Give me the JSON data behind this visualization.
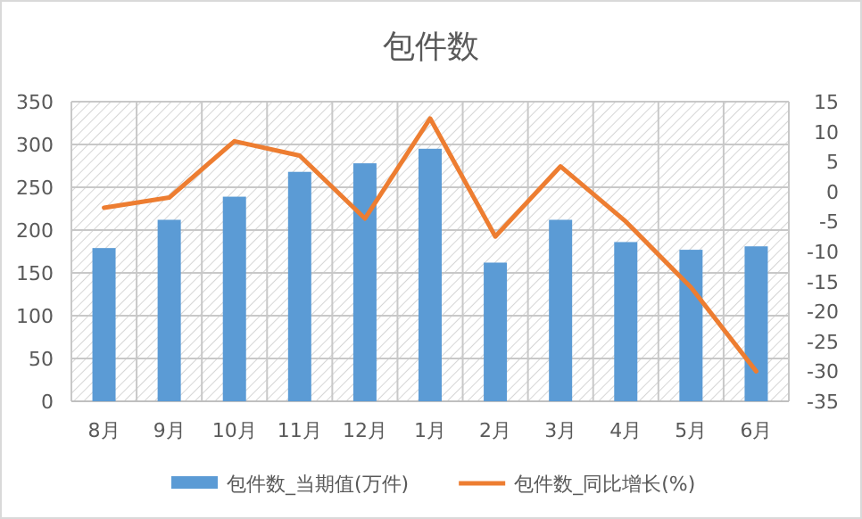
{
  "chart_data": {
    "type": "bar",
    "title": "包件数",
    "categories": [
      "8月",
      "9月",
      "10月",
      "11月",
      "12月",
      "1月",
      "2月",
      "3月",
      "4月",
      "5月",
      "6月"
    ],
    "series": [
      {
        "name": "包件数_当期值(万件)",
        "color": "#5b9bd5",
        "values": [
          179,
          212,
          239,
          268,
          278,
          295,
          162,
          212,
          186,
          177,
          181
        ]
      },
      {
        "name": "包件数_同比增长(%)",
        "type": "line",
        "axis": "y2",
        "color": "#ed7d31",
        "values": [
          -2.7,
          -1,
          8.4,
          6,
          -4.5,
          12.2,
          -7.5,
          4.2,
          -5,
          -16,
          -30
        ]
      }
    ],
    "ylim": [
      0,
      350
    ],
    "yticks": [
      0,
      50,
      100,
      150,
      200,
      250,
      300,
      350
    ],
    "y2lim": [
      -35,
      15
    ],
    "y2ticks": [
      -35,
      -30,
      -25,
      -20,
      -15,
      -10,
      -5,
      0,
      5,
      10,
      15
    ],
    "grid": true,
    "legend": "bottom",
    "marker": "none",
    "line_style": "solid"
  }
}
